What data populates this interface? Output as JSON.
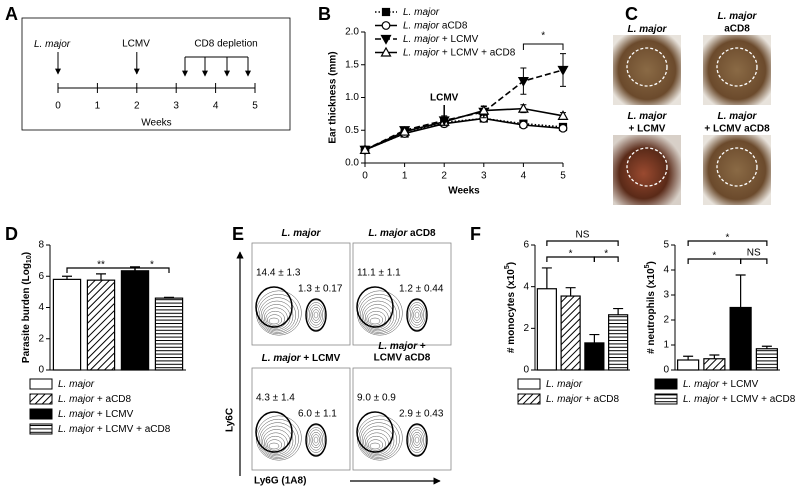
{
  "panel_letters": [
    "A",
    "B",
    "C",
    "D",
    "E",
    "F"
  ],
  "timeline": {
    "labels": [
      "L. major",
      "LCMV",
      "CD8 depletion"
    ],
    "ticks": [
      0,
      1,
      2,
      3,
      4,
      5
    ],
    "xlabel": "Weeks"
  },
  "chart_data": [
    {
      "type": "line",
      "legend": "top",
      "x": [
        0,
        1,
        2,
        3,
        4,
        5
      ],
      "xlim": [
        0,
        5
      ],
      "xticks": [
        0,
        1,
        2,
        3,
        4,
        5
      ],
      "ylim": [
        0,
        2
      ],
      "yticks": [
        {
          "value": 0,
          "label": "0.0"
        },
        {
          "value": 0.5,
          "label": "0.5"
        },
        {
          "value": 1,
          "label": "1.0"
        },
        {
          "value": 1.5,
          "label": "1.5"
        },
        {
          "value": 2,
          "label": "2.0"
        }
      ],
      "xlabel": "Weeks",
      "ylabel": "Ear thickness (mm)",
      "annotations": [
        "LCMV",
        "*"
      ],
      "series": [
        {
          "name": "L. major",
          "color": "#000000",
          "style": "dotted",
          "marker": "square",
          "values": [
            0.2,
            0.45,
            0.62,
            0.68,
            0.6,
            0.55
          ],
          "errors": [
            0.02,
            0.04,
            0.05,
            0.05,
            0.05,
            0.04
          ]
        },
        {
          "name": "L. major aCD8",
          "color": "#000000",
          "style": "solid",
          "marker": "circle",
          "values": [
            0.2,
            0.45,
            0.6,
            0.68,
            0.58,
            0.53
          ],
          "errors": [
            0.02,
            0.04,
            0.05,
            0.05,
            0.04,
            0.04
          ]
        },
        {
          "name": "L. major + LCMV",
          "color": "#000000",
          "style": "dashed",
          "marker": "triangle-down",
          "values": [
            0.2,
            0.5,
            0.65,
            0.78,
            1.25,
            1.42
          ],
          "errors": [
            0.02,
            0.05,
            0.07,
            0.09,
            0.2,
            0.25
          ]
        },
        {
          "name": "L. major + LCMV + aCD8",
          "color": "#000000",
          "style": "solid",
          "marker": "triangle-up",
          "values": [
            0.2,
            0.48,
            0.63,
            0.8,
            0.83,
            0.72
          ],
          "errors": [
            0.02,
            0.04,
            0.05,
            0.06,
            0.06,
            0.05
          ]
        }
      ]
    },
    {
      "type": "bar",
      "ylabel": {
        "text": "Parasite burden (Log",
        "sub": "10",
        "end": ")"
      },
      "categories": [
        "L. major",
        "L. major + aCD8",
        "L. major + LCMV",
        "L. major + LCMV + aCD8"
      ],
      "values": [
        5.8,
        5.75,
        6.35,
        4.6
      ],
      "errors": [
        0.2,
        0.4,
        0.25,
        0.05
      ],
      "patterns": [
        "none",
        "diagonal",
        "solid",
        "horizontal"
      ],
      "ylim": [
        0,
        8
      ],
      "yticks": [
        0,
        2,
        4,
        6,
        8
      ],
      "annotations": [
        "**",
        "*"
      ]
    },
    {
      "type": "bar",
      "ylabel": {
        "text": "# monocytes (x10",
        "sup": "5",
        "end": ")"
      },
      "categories": [
        "L. major",
        "L. major + aCD8",
        "L. major + LCMV",
        "L. major + LCMV + aCD8"
      ],
      "values": [
        3.9,
        3.55,
        1.3,
        2.65
      ],
      "errors": [
        1.0,
        0.4,
        0.4,
        0.3
      ],
      "patterns": [
        "none",
        "diagonal",
        "solid",
        "horizontal"
      ],
      "ylim": [
        0,
        6
      ],
      "yticks": [
        0,
        2,
        4,
        6
      ],
      "annotations": [
        "NS",
        "*",
        "*"
      ]
    },
    {
      "type": "bar",
      "ylabel": {
        "text": "# neutrophils (x10",
        "sup": "5",
        "end": ")"
      },
      "categories": [
        "L. major",
        "L. major + aCD8",
        "L. major + LCMV",
        "L. major + LCMV + aCD8"
      ],
      "values": [
        0.4,
        0.45,
        2.5,
        0.85
      ],
      "errors": [
        0.15,
        0.15,
        1.3,
        0.1
      ],
      "patterns": [
        "none",
        "diagonal",
        "solid",
        "horizontal"
      ],
      "ylim": [
        0,
        5
      ],
      "yticks": [
        0,
        1,
        2,
        3,
        4,
        5
      ],
      "annotations": [
        "*",
        "*",
        "NS"
      ]
    }
  ],
  "photos": {
    "labels": [
      [
        "L. major"
      ],
      [
        "L. major",
        "aCD8"
      ],
      [
        "L. major",
        "+ LCMV"
      ],
      [
        "L. major",
        "+ LCMV aCD8"
      ]
    ]
  },
  "flow": {
    "ylabel": "Ly6C",
    "xlabel": "Ly6G (1A8)",
    "panels": [
      {
        "title": [
          "L. major"
        ],
        "stats": [
          "14.4 ± 1.3",
          "1.3 ± 0.17"
        ]
      },
      {
        "title": [
          "L. major aCD8"
        ],
        "stats": [
          "11.1 ± 1.1",
          "1.2 ± 0.44"
        ]
      },
      {
        "title": [
          "L. major + LCMV"
        ],
        "stats": [
          "4.3 ± 1.4",
          "6.0 ± 1.1"
        ]
      },
      {
        "title": [
          "L. major +",
          "LCMV aCD8"
        ],
        "stats": [
          "9.0 ± 0.9",
          "2.9 ± 0.43"
        ]
      }
    ]
  }
}
